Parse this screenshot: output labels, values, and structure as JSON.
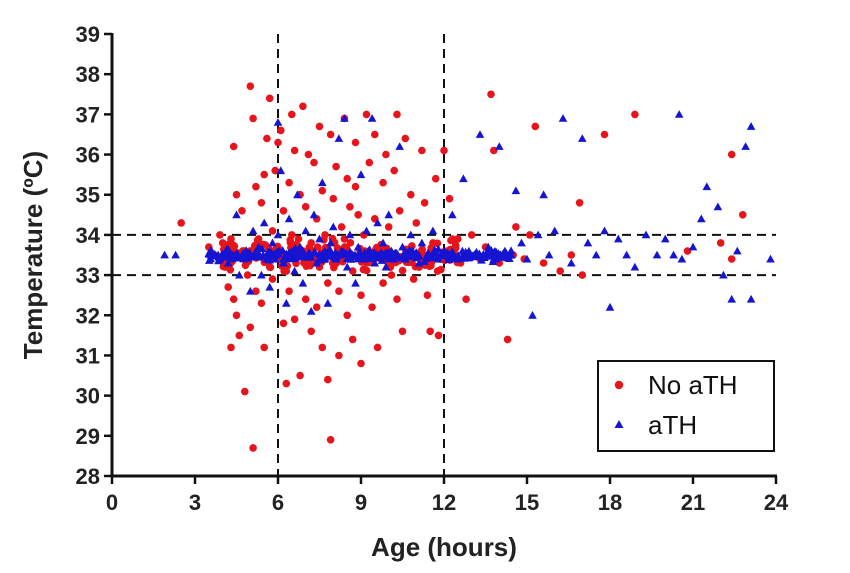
{
  "chart_data": {
    "type": "scatter",
    "title": "",
    "xlabel": "Age (hours)",
    "ylabel": "Temperature (ºC)",
    "xlim": [
      0,
      24
    ],
    "ylim": [
      28,
      39
    ],
    "xticks": [
      "0",
      "3",
      "6",
      "9",
      "12",
      "15",
      "18",
      "21",
      "24"
    ],
    "yticks": [
      "28",
      "29",
      "30",
      "31",
      "32",
      "33",
      "34",
      "35",
      "36",
      "37",
      "38",
      "39"
    ],
    "grid": false,
    "legend_position": "bottom-right",
    "reference_lines": {
      "x": [
        6,
        12
      ],
      "y": [
        33,
        34
      ],
      "style": "dashed"
    },
    "series": [
      {
        "name": "No aTH",
        "marker": "circle",
        "color": "#e8141c",
        "points": [
          [
            2.5,
            34.3
          ],
          [
            3.5,
            33.7
          ],
          [
            3.7,
            33.5
          ],
          [
            3.9,
            34.0
          ],
          [
            4.0,
            33.8
          ],
          [
            4.1,
            33.2
          ],
          [
            4.2,
            32.7
          ],
          [
            4.3,
            33.9
          ],
          [
            4.4,
            36.2
          ],
          [
            4.4,
            32.4
          ],
          [
            4.3,
            31.2
          ],
          [
            4.5,
            35.0
          ],
          [
            4.5,
            32.0
          ],
          [
            4.6,
            31.5
          ],
          [
            4.7,
            34.6
          ],
          [
            4.8,
            30.1
          ],
          [
            4.8,
            33.6
          ],
          [
            4.9,
            33.0
          ],
          [
            5.0,
            37.7
          ],
          [
            5.0,
            31.7
          ],
          [
            5.1,
            36.9
          ],
          [
            5.1,
            28.7
          ],
          [
            5.2,
            35.2
          ],
          [
            5.2,
            32.6
          ],
          [
            5.3,
            33.9
          ],
          [
            5.4,
            34.8
          ],
          [
            5.4,
            32.3
          ],
          [
            5.5,
            35.5
          ],
          [
            5.5,
            31.2
          ],
          [
            5.6,
            36.4
          ],
          [
            5.7,
            37.4
          ],
          [
            5.7,
            33.2
          ],
          [
            5.8,
            34.1
          ],
          [
            5.8,
            32.9
          ],
          [
            5.9,
            35.6
          ],
          [
            6.0,
            36.3
          ],
          [
            6.0,
            33.4
          ],
          [
            6.1,
            36.6
          ],
          [
            6.2,
            34.6
          ],
          [
            6.2,
            31.8
          ],
          [
            6.3,
            30.3
          ],
          [
            6.3,
            33.1
          ],
          [
            6.4,
            35.3
          ],
          [
            6.4,
            32.6
          ],
          [
            6.5,
            37.0
          ],
          [
            6.5,
            34.0
          ],
          [
            6.6,
            36.1
          ],
          [
            6.6,
            31.9
          ],
          [
            6.7,
            33.6
          ],
          [
            6.8,
            35.0
          ],
          [
            6.8,
            30.5
          ],
          [
            6.9,
            37.2
          ],
          [
            7.0,
            34.7
          ],
          [
            7.0,
            32.4
          ],
          [
            7.1,
            36.0
          ],
          [
            7.2,
            33.8
          ],
          [
            7.2,
            31.6
          ],
          [
            7.3,
            35.8
          ],
          [
            7.4,
            34.4
          ],
          [
            7.4,
            32.2
          ],
          [
            7.5,
            36.7
          ],
          [
            7.5,
            33.2
          ],
          [
            7.6,
            35.1
          ],
          [
            7.6,
            31.2
          ],
          [
            7.7,
            34.0
          ],
          [
            7.8,
            30.4
          ],
          [
            7.8,
            32.8
          ],
          [
            7.9,
            28.9
          ],
          [
            7.9,
            36.5
          ],
          [
            8.0,
            34.9
          ],
          [
            8.0,
            33.4
          ],
          [
            8.1,
            35.7
          ],
          [
            8.2,
            32.6
          ],
          [
            8.2,
            31.0
          ],
          [
            8.3,
            34.2
          ],
          [
            8.4,
            36.9
          ],
          [
            8.4,
            33.9
          ],
          [
            8.5,
            35.4
          ],
          [
            8.5,
            32.0
          ],
          [
            8.6,
            34.7
          ],
          [
            8.7,
            31.4
          ],
          [
            8.7,
            33.1
          ],
          [
            8.8,
            36.3
          ],
          [
            8.8,
            35.2
          ],
          [
            8.9,
            34.5
          ],
          [
            9.0,
            32.5
          ],
          [
            9.0,
            30.8
          ],
          [
            9.1,
            34.0
          ],
          [
            9.2,
            37.0
          ],
          [
            9.2,
            33.3
          ],
          [
            9.3,
            35.8
          ],
          [
            9.4,
            32.2
          ],
          [
            9.5,
            36.5
          ],
          [
            9.5,
            34.4
          ],
          [
            9.6,
            31.2
          ],
          [
            9.7,
            33.7
          ],
          [
            9.8,
            35.3
          ],
          [
            9.8,
            32.8
          ],
          [
            9.9,
            36.0
          ],
          [
            10.0,
            34.2
          ],
          [
            10.1,
            33.0
          ],
          [
            10.2,
            35.6
          ],
          [
            10.3,
            37.0
          ],
          [
            10.3,
            32.4
          ],
          [
            10.4,
            34.6
          ],
          [
            10.5,
            31.6
          ],
          [
            10.6,
            36.4
          ],
          [
            10.7,
            33.5
          ],
          [
            10.8,
            35.0
          ],
          [
            10.9,
            32.9
          ],
          [
            11.0,
            34.3
          ],
          [
            11.1,
            33.2
          ],
          [
            11.2,
            36.1
          ],
          [
            11.3,
            34.8
          ],
          [
            11.4,
            32.5
          ],
          [
            11.5,
            31.6
          ],
          [
            11.6,
            33.8
          ],
          [
            11.7,
            35.4
          ],
          [
            11.8,
            31.5
          ],
          [
            12.0,
            36.1
          ],
          [
            12.1,
            33.6
          ],
          [
            12.2,
            34.9
          ],
          [
            12.5,
            33.9
          ],
          [
            12.6,
            33.3
          ],
          [
            12.8,
            32.4
          ],
          [
            13.0,
            34.0
          ],
          [
            13.3,
            33.4
          ],
          [
            13.5,
            33.7
          ],
          [
            13.7,
            37.5
          ],
          [
            13.8,
            36.1
          ],
          [
            14.0,
            33.3
          ],
          [
            14.3,
            31.4
          ],
          [
            14.5,
            33.5
          ],
          [
            14.6,
            34.2
          ],
          [
            14.9,
            33.4
          ],
          [
            15.1,
            34.0
          ],
          [
            15.3,
            36.7
          ],
          [
            15.6,
            33.3
          ],
          [
            16.2,
            33.1
          ],
          [
            16.6,
            33.5
          ],
          [
            16.9,
            34.8
          ],
          [
            17.0,
            33.0
          ],
          [
            17.8,
            36.5
          ],
          [
            18.9,
            37.0
          ],
          [
            20.8,
            33.6
          ],
          [
            22.0,
            33.8
          ],
          [
            22.4,
            33.4
          ],
          [
            22.4,
            36.0
          ],
          [
            22.8,
            34.5
          ]
        ]
      },
      {
        "name": "aTH",
        "marker": "triangle",
        "color": "#1414d2",
        "points": [
          [
            1.9,
            33.5
          ],
          [
            2.3,
            33.5
          ],
          [
            3.6,
            33.6
          ],
          [
            3.9,
            33.4
          ],
          [
            4.2,
            33.3
          ],
          [
            4.5,
            34.5
          ],
          [
            4.6,
            33.0
          ],
          [
            4.9,
            33.5
          ],
          [
            5.0,
            32.6
          ],
          [
            5.1,
            34.1
          ],
          [
            5.3,
            33.7
          ],
          [
            5.4,
            33.0
          ],
          [
            5.5,
            34.3
          ],
          [
            5.6,
            33.4
          ],
          [
            5.7,
            32.7
          ],
          [
            5.8,
            33.8
          ],
          [
            5.9,
            33.4
          ],
          [
            6.0,
            36.8
          ],
          [
            6.0,
            34.0
          ],
          [
            6.1,
            35.6
          ],
          [
            6.2,
            33.3
          ],
          [
            6.3,
            32.3
          ],
          [
            6.4,
            34.4
          ],
          [
            6.5,
            33.6
          ],
          [
            6.6,
            33.1
          ],
          [
            6.7,
            35.0
          ],
          [
            6.8,
            33.7
          ],
          [
            6.9,
            32.8
          ],
          [
            7.0,
            34.1
          ],
          [
            7.1,
            33.5
          ],
          [
            7.2,
            32.1
          ],
          [
            7.3,
            34.5
          ],
          [
            7.4,
            33.3
          ],
          [
            7.5,
            33.9
          ],
          [
            7.6,
            35.3
          ],
          [
            7.7,
            33.6
          ],
          [
            7.8,
            32.3
          ],
          [
            7.9,
            33.8
          ],
          [
            8.0,
            34.2
          ],
          [
            8.1,
            33.4
          ],
          [
            8.2,
            36.4
          ],
          [
            8.3,
            33.6
          ],
          [
            8.4,
            36.9
          ],
          [
            8.5,
            33.2
          ],
          [
            8.6,
            34.0
          ],
          [
            8.7,
            33.5
          ],
          [
            8.8,
            32.8
          ],
          [
            8.9,
            33.7
          ],
          [
            9.0,
            35.5
          ],
          [
            9.1,
            33.4
          ],
          [
            9.2,
            34.1
          ],
          [
            9.3,
            33.6
          ],
          [
            9.4,
            36.9
          ],
          [
            9.5,
            33.3
          ],
          [
            9.6,
            34.3
          ],
          [
            9.7,
            33.5
          ],
          [
            9.8,
            33.8
          ],
          [
            9.9,
            33.2
          ],
          [
            10.0,
            34.5
          ],
          [
            10.1,
            33.6
          ],
          [
            10.2,
            33.4
          ],
          [
            10.4,
            36.2
          ],
          [
            10.5,
            33.7
          ],
          [
            10.6,
            33.4
          ],
          [
            10.8,
            34.0
          ],
          [
            11.0,
            33.5
          ],
          [
            11.1,
            33.3
          ],
          [
            11.2,
            33.8
          ],
          [
            11.4,
            33.5
          ],
          [
            11.6,
            34.1
          ],
          [
            11.8,
            33.4
          ],
          [
            12.0,
            33.6
          ],
          [
            12.2,
            33.5
          ],
          [
            12.3,
            34.5
          ],
          [
            12.5,
            33.4
          ],
          [
            12.7,
            35.4
          ],
          [
            12.9,
            33.6
          ],
          [
            13.1,
            33.5
          ],
          [
            13.3,
            36.5
          ],
          [
            13.6,
            33.7
          ],
          [
            13.8,
            33.4
          ],
          [
            14.0,
            36.2
          ],
          [
            14.2,
            33.6
          ],
          [
            14.4,
            33.5
          ],
          [
            14.6,
            35.1
          ],
          [
            14.8,
            33.8
          ],
          [
            15.0,
            33.4
          ],
          [
            15.2,
            32.0
          ],
          [
            15.4,
            34.0
          ],
          [
            15.6,
            35.0
          ],
          [
            15.8,
            33.5
          ],
          [
            16.0,
            34.1
          ],
          [
            16.3,
            36.9
          ],
          [
            16.6,
            33.3
          ],
          [
            17.0,
            36.4
          ],
          [
            17.2,
            33.8
          ],
          [
            17.5,
            33.5
          ],
          [
            17.8,
            34.1
          ],
          [
            18.0,
            32.2
          ],
          [
            18.3,
            33.9
          ],
          [
            18.6,
            33.5
          ],
          [
            18.9,
            33.2
          ],
          [
            19.3,
            34.0
          ],
          [
            19.7,
            33.5
          ],
          [
            20.0,
            33.9
          ],
          [
            20.3,
            33.5
          ],
          [
            20.5,
            37.0
          ],
          [
            20.6,
            33.4
          ],
          [
            21.0,
            33.7
          ],
          [
            21.3,
            34.4
          ],
          [
            21.5,
            35.2
          ],
          [
            21.9,
            34.7
          ],
          [
            22.1,
            33.0
          ],
          [
            22.4,
            32.4
          ],
          [
            22.6,
            33.6
          ],
          [
            22.9,
            36.2
          ],
          [
            23.1,
            36.7
          ],
          [
            23.1,
            32.4
          ],
          [
            23.8,
            33.4
          ]
        ]
      }
    ],
    "dense_band": {
      "comment_free": true,
      "x_range": [
        3.5,
        14.5
      ],
      "y_center": 33.5,
      "series": [
        "aTH",
        "No aTH"
      ]
    }
  }
}
